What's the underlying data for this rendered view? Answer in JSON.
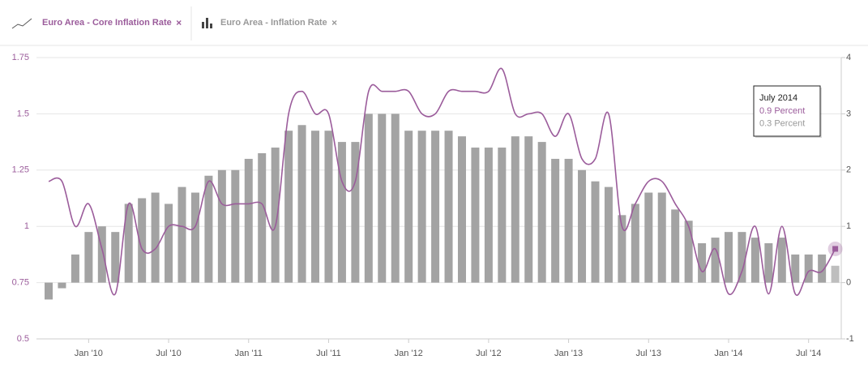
{
  "chart_data": {
    "type": "combo",
    "categories": [
      null,
      null,
      null,
      null,
      "Jan '10",
      null,
      null,
      null,
      null,
      null,
      "Jul '10",
      null,
      null,
      null,
      null,
      null,
      "Jan '11",
      null,
      null,
      null,
      null,
      null,
      "Jul '11",
      null,
      null,
      null,
      null,
      null,
      "Jan '12",
      null,
      null,
      null,
      null,
      null,
      "Jul '12",
      null,
      null,
      null,
      null,
      null,
      "Jan '13",
      null,
      null,
      null,
      null,
      null,
      "Jul '13",
      null,
      null,
      null,
      null,
      null,
      "Jan '14",
      null,
      null,
      null,
      null,
      null,
      "Jul '14",
      null
    ],
    "series": [
      {
        "name": "Euro Area - Core Inflation Rate",
        "type": "line",
        "axis": "y",
        "color": "#9b5c9b",
        "values": [
          1.2,
          1.2,
          1.0,
          1.1,
          0.9,
          0.7,
          1.1,
          0.9,
          0.9,
          1.0,
          1.0,
          1.0,
          1.2,
          1.1,
          1.1,
          1.1,
          1.1,
          1.0,
          1.5,
          1.6,
          1.5,
          1.5,
          1.2,
          1.2,
          1.6,
          1.6,
          1.6,
          1.6,
          1.5,
          1.5,
          1.6,
          1.6,
          1.6,
          1.6,
          1.7,
          1.5,
          1.5,
          1.5,
          1.4,
          1.5,
          1.3,
          1.3,
          1.5,
          1.0,
          1.1,
          1.2,
          1.2,
          1.1,
          1.0,
          0.8,
          0.9,
          0.7,
          0.8,
          1.0,
          0.7,
          1.0,
          0.7,
          0.8,
          0.8,
          0.9
        ]
      },
      {
        "name": "Euro Area - Inflation Rate",
        "type": "bar",
        "axis": "y2",
        "color": "#a3a3a3",
        "values": [
          -0.3,
          -0.1,
          0.5,
          0.9,
          1.0,
          0.9,
          1.4,
          1.5,
          1.6,
          1.4,
          1.7,
          1.6,
          1.9,
          2.0,
          2.0,
          2.2,
          2.3,
          2.4,
          2.7,
          2.8,
          2.7,
          2.7,
          2.5,
          2.5,
          3.0,
          3.0,
          3.0,
          2.7,
          2.7,
          2.7,
          2.7,
          2.6,
          2.4,
          2.4,
          2.4,
          2.6,
          2.6,
          2.5,
          2.2,
          2.2,
          2.0,
          1.8,
          1.7,
          1.2,
          1.4,
          1.6,
          1.6,
          1.3,
          1.1,
          0.7,
          0.8,
          0.9,
          0.9,
          0.8,
          0.7,
          0.8,
          0.5,
          0.5,
          0.5,
          0.3
        ]
      }
    ],
    "ylim": [
      0.5,
      1.75
    ],
    "yticks": [
      0.5,
      0.75,
      1,
      1.25,
      1.5,
      1.75
    ],
    "y2lim": [
      -1,
      4
    ],
    "y2ticks": [
      -1,
      0,
      1,
      2,
      3,
      4
    ],
    "grid": true,
    "tooltip": {
      "title": "July 2014",
      "lines": [
        "0.9 Percent",
        "0.3 Percent"
      ]
    }
  }
}
